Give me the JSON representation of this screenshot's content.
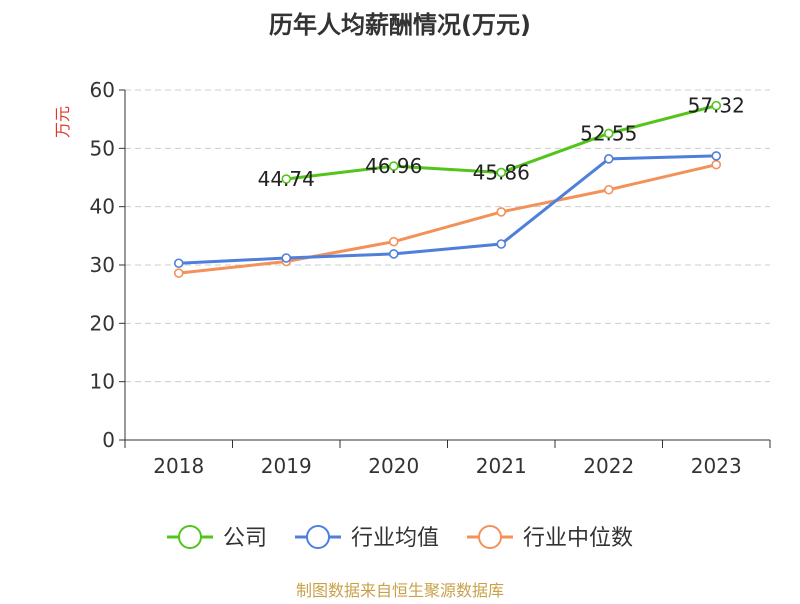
{
  "chart_data": {
    "type": "line",
    "title": "历年人均薪酬情况(万元)",
    "ylabel": "万元",
    "xlabel": "",
    "categories": [
      "2018",
      "2019",
      "2020",
      "2021",
      "2022",
      "2023"
    ],
    "ylim": [
      0,
      60
    ],
    "yticks": [
      0,
      10,
      20,
      30,
      40,
      50,
      60
    ],
    "grid": true,
    "legend_position": "bottom",
    "series": [
      {
        "name": "公司",
        "color": "#52c41a",
        "values": [
          null,
          44.74,
          46.96,
          45.86,
          52.55,
          57.32
        ],
        "labels": [
          null,
          "44.74",
          "46.96",
          "45.86",
          "52.55",
          "57.32"
        ]
      },
      {
        "name": "行业均值",
        "color": "#4e7fdb",
        "values": [
          30.3,
          31.2,
          31.9,
          33.6,
          48.2,
          48.7
        ],
        "labels": []
      },
      {
        "name": "行业中位数",
        "color": "#f39158",
        "values": [
          28.6,
          30.6,
          34.0,
          39.1,
          42.9,
          47.2
        ],
        "labels": []
      }
    ]
  },
  "source_note": "制图数据来自恒生聚源数据库",
  "colors": {
    "title": "#333333",
    "axis": "#333333",
    "tick_label": "#333333",
    "grid": "#cccccc",
    "ylabel": "#e0342a",
    "source": "#c8a24a"
  }
}
